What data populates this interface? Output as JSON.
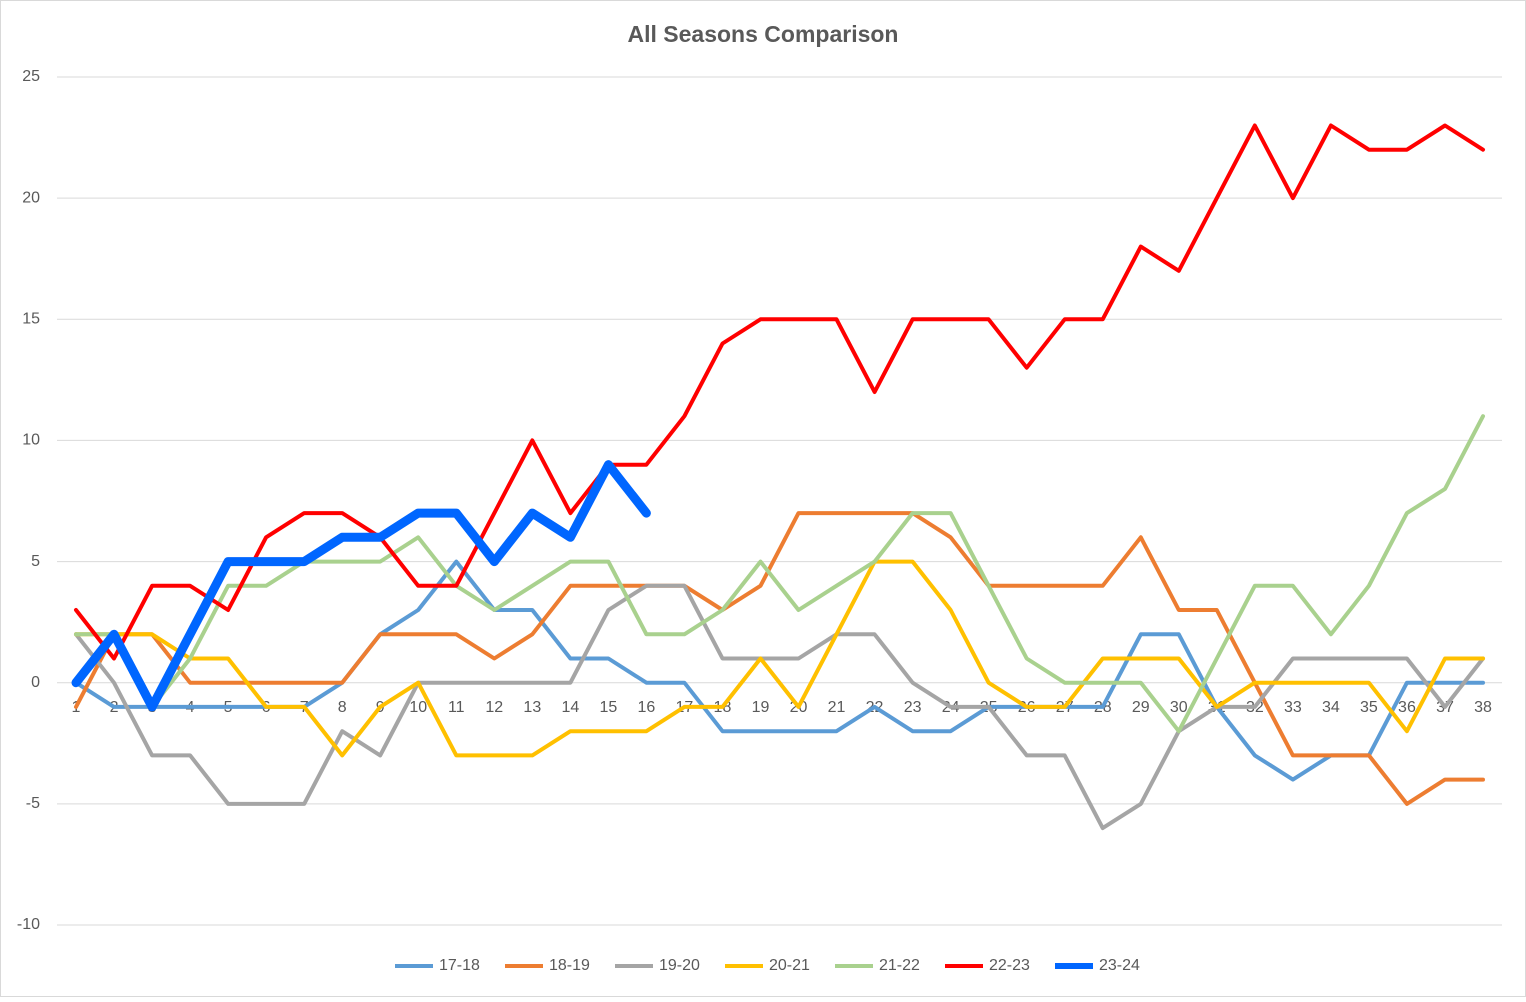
{
  "chart_data": {
    "type": "line",
    "title": "All Seasons Comparison",
    "categories": [
      1,
      2,
      3,
      4,
      5,
      6,
      7,
      8,
      9,
      10,
      11,
      12,
      13,
      14,
      15,
      16,
      17,
      18,
      19,
      20,
      21,
      22,
      23,
      24,
      25,
      26,
      27,
      28,
      29,
      30,
      31,
      32,
      33,
      34,
      35,
      36,
      37,
      38
    ],
    "series": [
      {
        "name": "17-18",
        "color": "#5b9bd5",
        "line_width": 4,
        "values": [
          0,
          -1,
          -1,
          -1,
          -1,
          -1,
          -1,
          0,
          2,
          3,
          5,
          3,
          3,
          1,
          1,
          0,
          0,
          -2,
          -2,
          -2,
          -2,
          -1,
          -2,
          -2,
          -1,
          -1,
          -1,
          -1,
          2,
          2,
          -1,
          -3,
          -4,
          -3,
          -3,
          0,
          0,
          0
        ]
      },
      {
        "name": "18-19",
        "color": "#ed7d31",
        "line_width": 4,
        "values": [
          -1,
          2,
          2,
          0,
          0,
          0,
          0,
          0,
          2,
          2,
          2,
          1,
          2,
          4,
          4,
          4,
          4,
          3,
          4,
          7,
          7,
          7,
          7,
          6,
          4,
          4,
          4,
          4,
          6,
          3,
          3,
          0,
          -3,
          -3,
          -3,
          -5,
          -4,
          -4
        ]
      },
      {
        "name": "19-20",
        "color": "#a5a5a5",
        "line_width": 4,
        "values": [
          2,
          0,
          -3,
          -3,
          -5,
          -5,
          -5,
          -2,
          -3,
          0,
          0,
          0,
          0,
          0,
          3,
          4,
          4,
          1,
          1,
          1,
          2,
          2,
          0,
          -1,
          -1,
          -3,
          -3,
          -6,
          -5,
          -2,
          -1,
          -1,
          1,
          1,
          1,
          1,
          -1,
          1
        ]
      },
      {
        "name": "20-21",
        "color": "#ffc000",
        "line_width": 4,
        "values": [
          2,
          2,
          2,
          1,
          1,
          -1,
          -1,
          -3,
          -1,
          0,
          -3,
          -3,
          -3,
          -2,
          -2,
          -2,
          -1,
          -1,
          1,
          -1,
          2,
          5,
          5,
          3,
          0,
          -1,
          -1,
          1,
          1,
          1,
          -1,
          0,
          0,
          0,
          0,
          -2,
          1,
          1
        ]
      },
      {
        "name": "21-22",
        "color": "#a9d18e",
        "line_width": 4,
        "values": [
          2,
          2,
          -1,
          1,
          4,
          4,
          5,
          5,
          5,
          6,
          4,
          3,
          4,
          5,
          5,
          2,
          2,
          3,
          5,
          3,
          4,
          5,
          7,
          7,
          4,
          1,
          0,
          0,
          0,
          -2,
          1,
          4,
          4,
          2,
          4,
          7,
          8,
          11
        ]
      },
      {
        "name": "22-23",
        "color": "#ff0000",
        "line_width": 4,
        "values": [
          3,
          1,
          4,
          4,
          3,
          6,
          7,
          7,
          6,
          4,
          4,
          7,
          10,
          7,
          9,
          9,
          11,
          14,
          15,
          15,
          15,
          12,
          15,
          15,
          15,
          13,
          15,
          15,
          18,
          17,
          20,
          23,
          20,
          23,
          22,
          22,
          23,
          22
        ]
      },
      {
        "name": "23-24",
        "color": "#0066ff",
        "line_width": 9,
        "values": [
          0,
          2,
          -1,
          2,
          5,
          5,
          5,
          6,
          6,
          7,
          7,
          5,
          7,
          6,
          9,
          7,
          null,
          null,
          null,
          null,
          null,
          null,
          null,
          null,
          null,
          null,
          null,
          null,
          null,
          null,
          null,
          null,
          null,
          null,
          null,
          null,
          null,
          null
        ]
      }
    ],
    "ylim": [
      -10,
      25
    ],
    "yticks": [
      -10,
      -5,
      0,
      5,
      10,
      15,
      20,
      25
    ],
    "grid": true,
    "legend": "bottom"
  }
}
